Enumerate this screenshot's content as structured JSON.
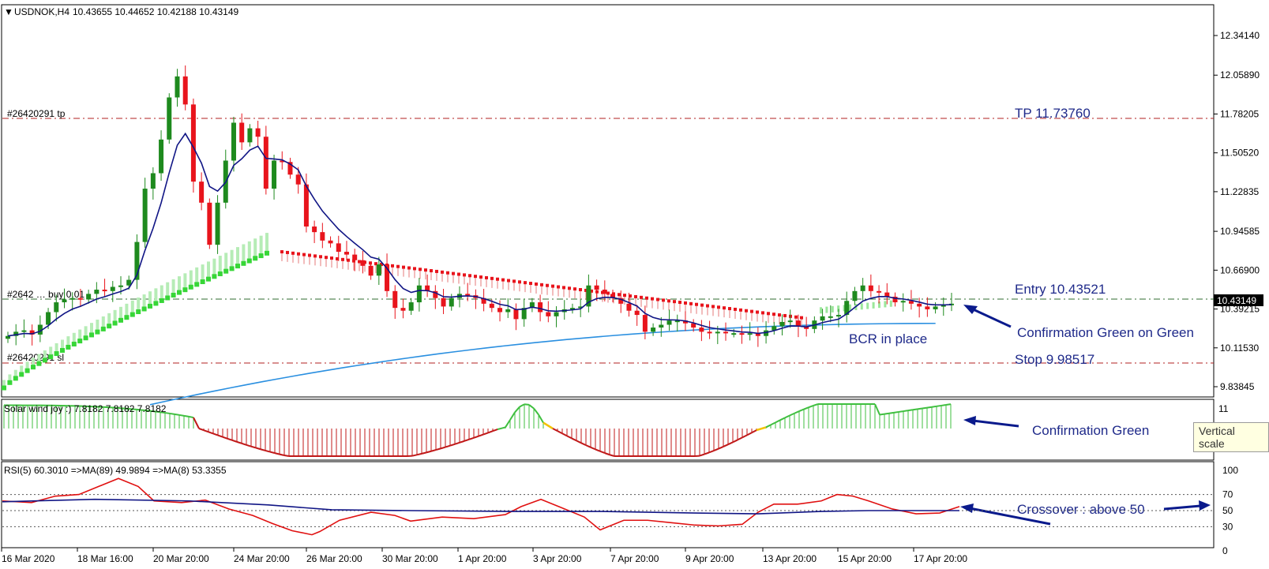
{
  "header": {
    "symbol": "USDNOK,H4",
    "ohlc": "10.43655 10.44652 10.42188 10.43149"
  },
  "colors": {
    "bull": "#1e8a1e",
    "bear": "#e8141c",
    "ma_fast": "#101585",
    "ma_slow": "#2a8fe0",
    "level_line": "#b02020",
    "entry_line": "#2f6b2f",
    "note": "#1f2a8a",
    "arrow": "#0a1a8c",
    "osc_green": "#3fbf3f",
    "osc_red": "#c01818",
    "osc_yellow": "#f2c200",
    "rsi_line": "#e01010",
    "rsi_ma": "#101585"
  },
  "trade_lines": {
    "tp_label": "#26420291 tp",
    "entry_label": "#2642 … buy 0.01",
    "sl_label": "#26420291 sl"
  },
  "annotations": {
    "tp": "TP 11.73760",
    "entry": "Entry 10.43521",
    "stop": "Stop 9.98517",
    "confirmation_main": "Confirmation Green on Green",
    "bcr": "BCR in place",
    "confirmation_osc": "Confirmation Green",
    "crossover": "Crossover : above 50"
  },
  "current_price_tag": "10.43149",
  "tooltip": "Vertical scale",
  "oscillator": {
    "label": "Solar wind joy :) 7.8182 7.8182 7.8182",
    "max_label": "11"
  },
  "rsi": {
    "label": "RSI(5) 60.3010  =>MA(89) 49.9894  =>MA(8) 53.3355"
  },
  "chart_data": {
    "type": "candlestick",
    "price_axis_ticks": [
      "12.34140",
      "12.05890",
      "11.78205",
      "11.50520",
      "11.22835",
      "10.94585",
      "10.66900",
      "10.39215",
      "10.11530",
      "9.83845"
    ],
    "ylim": [
      9.71,
      12.45
    ],
    "time_labels": [
      "16 Mar 2020",
      "18 Mar 16:00",
      "20 Mar 20:00",
      "24 Mar 20:00",
      "26 Mar 20:00",
      "30 Mar 20:00",
      "1 Apr 20:00",
      "3 Apr 20:00",
      "7 Apr 20:00",
      "9 Apr 20:00",
      "13 Apr 20:00",
      "15 Apr 20:00",
      "17 Apr 20:00"
    ],
    "levels": {
      "tp": 11.7376,
      "entry": 10.43521,
      "stop": 9.98517
    },
    "candle_closes": [
      10.2,
      10.23,
      10.24,
      10.21,
      10.28,
      10.37,
      10.44,
      10.46,
      10.47,
      10.46,
      10.5,
      10.53,
      10.52,
      10.55,
      10.56,
      10.6,
      10.87,
      11.25,
      11.36,
      11.6,
      11.9,
      12.05,
      11.85,
      11.3,
      11.15,
      10.85,
      11.15,
      11.45,
      11.72,
      11.58,
      11.68,
      11.62,
      11.25,
      11.45,
      11.44,
      11.35,
      11.28,
      10.98,
      10.94,
      10.88,
      10.86,
      10.8,
      10.78,
      10.74,
      10.7,
      10.63,
      10.71,
      10.52,
      10.4,
      10.38,
      10.44,
      10.56,
      10.52,
      10.47,
      10.41,
      10.47,
      10.5,
      10.49,
      10.47,
      10.43,
      10.4,
      10.37,
      10.39,
      10.32,
      10.4,
      10.44,
      10.37,
      10.34,
      10.37,
      10.39,
      10.4,
      10.41,
      10.56,
      10.53,
      10.5,
      10.47,
      10.43,
      10.38,
      10.35,
      10.23,
      10.26,
      10.28,
      10.31,
      10.31,
      10.29,
      10.26,
      10.23,
      10.22,
      10.23,
      10.22,
      10.22,
      10.21,
      10.22,
      10.2,
      10.24,
      10.27,
      10.3,
      10.31,
      10.27,
      10.25,
      10.31,
      10.34,
      10.34,
      10.35,
      10.45,
      10.52,
      10.56,
      10.52,
      10.51,
      10.48,
      10.44,
      10.45,
      10.43,
      10.41,
      10.39,
      10.41,
      10.42,
      10.43
    ],
    "ma_slow_start": 9.71,
    "ma_slow_end": 10.29
  }
}
